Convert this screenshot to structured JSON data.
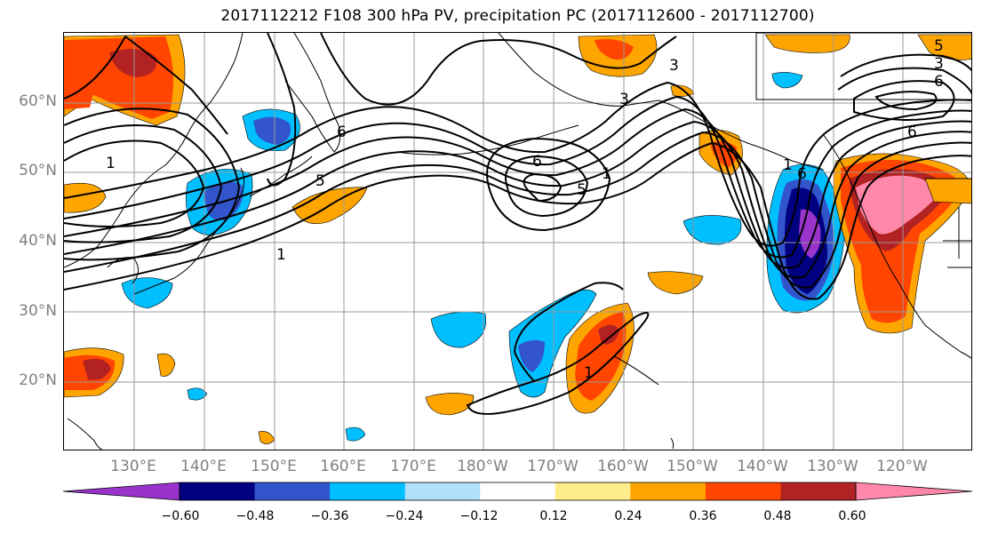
{
  "title": "2017112212 F108 300 hPa PV, precipitation PC (2017112600 - 2017112700)",
  "lat_labels": [
    "60°N",
    "50°N",
    "40°N",
    "30°N",
    "20°N"
  ],
  "lon_labels": [
    "130°E",
    "140°E",
    "150°E",
    "160°E",
    "170°E",
    "180°W",
    "170°W",
    "160°W",
    "150°W",
    "140°W",
    "130°W",
    "120°W"
  ],
  "contour_labels": [
    "1",
    "6",
    "5",
    "6",
    "5",
    "1",
    "3",
    "3",
    "6",
    "1",
    "6",
    "1",
    "5",
    "3",
    "6",
    "1"
  ],
  "colorbar": {
    "ticks": [
      "−0.60",
      "−0.48",
      "−0.36",
      "−0.24",
      "−0.12",
      "0.12",
      "0.24",
      "0.36",
      "0.48",
      "0.60"
    ],
    "colors": [
      "#9933cc",
      "#000080",
      "#3355cc",
      "#00bfff",
      "#b0e0fa",
      "#ffffff",
      "#ffec8b",
      "#ffa500",
      "#ff4500",
      "#b22222",
      "#ff88aa"
    ]
  },
  "legend_colors": {
    "under": "#9933cc",
    "over": "#ff88aa"
  }
}
